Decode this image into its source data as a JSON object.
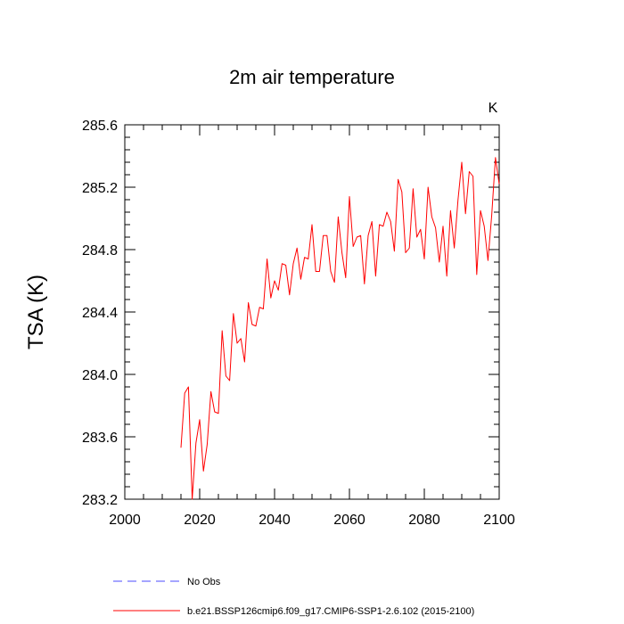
{
  "chart_data": {
    "type": "line",
    "title": "2m air temperature",
    "xlabel": "",
    "ylabel": "TSA  (K)",
    "units": "K",
    "xlim": [
      2000,
      2100
    ],
    "ylim": [
      283.2,
      285.6
    ],
    "xticks": [
      2000,
      2020,
      2040,
      2060,
      2080,
      2100
    ],
    "xtick_labels": [
      "2000",
      "2020",
      "2040",
      "2060",
      "2080",
      "2100"
    ],
    "yticks": [
      283.2,
      283.6,
      284.0,
      284.4,
      284.8,
      285.2,
      285.6
    ],
    "ytick_labels": [
      "283.2",
      "283.6",
      "284.0",
      "284.4",
      "284.8",
      "285.2",
      "285.6"
    ],
    "grid": false,
    "series": [
      {
        "name": "b.e21.BSSP126cmip6.f09_g17.CMIP6-SSP1-2.6.102 (2015-2100)",
        "color": "#ff0000",
        "style": "solid",
        "x": [
          2015,
          2016,
          2017,
          2018,
          2019,
          2020,
          2021,
          2022,
          2023,
          2024,
          2025,
          2026,
          2027,
          2028,
          2029,
          2030,
          2031,
          2032,
          2033,
          2034,
          2035,
          2036,
          2037,
          2038,
          2039,
          2040,
          2041,
          2042,
          2043,
          2044,
          2045,
          2046,
          2047,
          2048,
          2049,
          2050,
          2051,
          2052,
          2053,
          2054,
          2055,
          2056,
          2057,
          2058,
          2059,
          2060,
          2061,
          2062,
          2063,
          2064,
          2065,
          2066,
          2067,
          2068,
          2069,
          2070,
          2071,
          2072,
          2073,
          2074,
          2075,
          2076,
          2077,
          2078,
          2079,
          2080,
          2081,
          2082,
          2083,
          2084,
          2085,
          2086,
          2087,
          2088,
          2089,
          2090,
          2091,
          2092,
          2093,
          2094,
          2095,
          2096,
          2097,
          2098,
          2099,
          2100
        ],
        "values": [
          283.53,
          283.88,
          283.92,
          283.2,
          283.56,
          283.71,
          283.38,
          283.55,
          283.89,
          283.76,
          283.75,
          284.28,
          283.99,
          283.96,
          284.39,
          284.2,
          284.23,
          284.08,
          284.46,
          284.32,
          284.31,
          284.43,
          284.42,
          284.74,
          284.49,
          284.6,
          284.54,
          284.71,
          284.7,
          284.51,
          284.71,
          284.81,
          284.61,
          284.75,
          284.74,
          284.96,
          284.66,
          284.66,
          284.89,
          284.89,
          284.66,
          284.59,
          285.01,
          284.78,
          284.62,
          285.14,
          284.82,
          284.88,
          284.89,
          284.58,
          284.89,
          284.98,
          284.63,
          284.96,
          284.95,
          285.04,
          284.98,
          284.79,
          285.25,
          285.17,
          284.78,
          284.81,
          285.19,
          284.88,
          284.93,
          284.74,
          285.2,
          285.01,
          284.94,
          284.72,
          284.95,
          284.63,
          285.05,
          284.81,
          285.12,
          285.36,
          285.03,
          285.3,
          285.27,
          284.64,
          285.05,
          284.95,
          284.73,
          285.02,
          285.39,
          285.22
        ]
      },
      {
        "name": "No Obs",
        "color": "#4b4bff",
        "style": "dashed",
        "x": [],
        "values": []
      }
    ],
    "legend_placement": "bottom-left"
  }
}
